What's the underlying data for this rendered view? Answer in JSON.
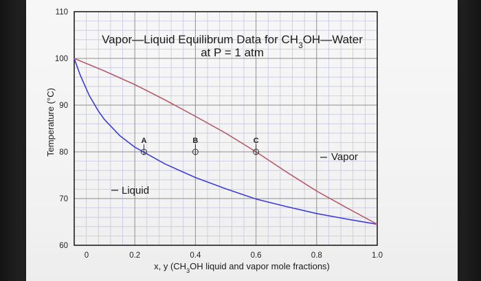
{
  "chart_data": {
    "type": "line",
    "title": "Vapor—Liquid Equilibrum Data for CH₃OH—Water",
    "subtitle": "at P = 1 atm",
    "xlabel": "x, y (CH₃OH liquid and vapor mole fractions)",
    "ylabel": "Temperature (°C)",
    "xlim": [
      0,
      1.0
    ],
    "ylim": [
      60,
      110
    ],
    "x_ticks": [
      {
        "value": 0,
        "label": "0"
      },
      {
        "value": 0.2,
        "label": "0.2"
      },
      {
        "value": 0.4,
        "label": "0.4"
      },
      {
        "value": 0.6,
        "label": "0.6"
      },
      {
        "value": 0.8,
        "label": "0.8"
      },
      {
        "value": 1.0,
        "label": "1.0"
      }
    ],
    "y_ticks": [
      {
        "value": 60,
        "label": "60"
      },
      {
        "value": 70,
        "label": "70"
      },
      {
        "value": 80,
        "label": "80"
      },
      {
        "value": 90,
        "label": "90"
      },
      {
        "value": 100,
        "label": "100"
      },
      {
        "value": 110,
        "label": "110"
      }
    ],
    "grid": true,
    "series": [
      {
        "name": "Liquid",
        "color": "#3b3bd6",
        "x": [
          0,
          0.02,
          0.05,
          0.08,
          0.1,
          0.15,
          0.2,
          0.3,
          0.4,
          0.5,
          0.6,
          0.7,
          0.8,
          0.9,
          1.0
        ],
        "y": [
          100,
          96.4,
          92.0,
          88.7,
          86.9,
          83.5,
          81.0,
          77.4,
          74.5,
          72.1,
          69.9,
          68.3,
          66.8,
          65.6,
          64.5
        ]
      },
      {
        "name": "Vapor",
        "color": "#b55a6a",
        "x": [
          0,
          0.1,
          0.2,
          0.3,
          0.4,
          0.5,
          0.6,
          0.7,
          0.8,
          0.9,
          1.0
        ],
        "y": [
          100,
          97.3,
          94.4,
          91.1,
          87.6,
          84.0,
          80.0,
          75.7,
          71.6,
          68.0,
          64.5
        ]
      }
    ],
    "points": [
      {
        "label": "A",
        "x": 0.23,
        "y": 80.0
      },
      {
        "label": "B",
        "x": 0.4,
        "y": 80.0
      },
      {
        "label": "C",
        "x": 0.6,
        "y": 80.0
      }
    ],
    "annotations": {
      "liquid_label": "Liquid",
      "vapor_label": "Vapor"
    }
  }
}
